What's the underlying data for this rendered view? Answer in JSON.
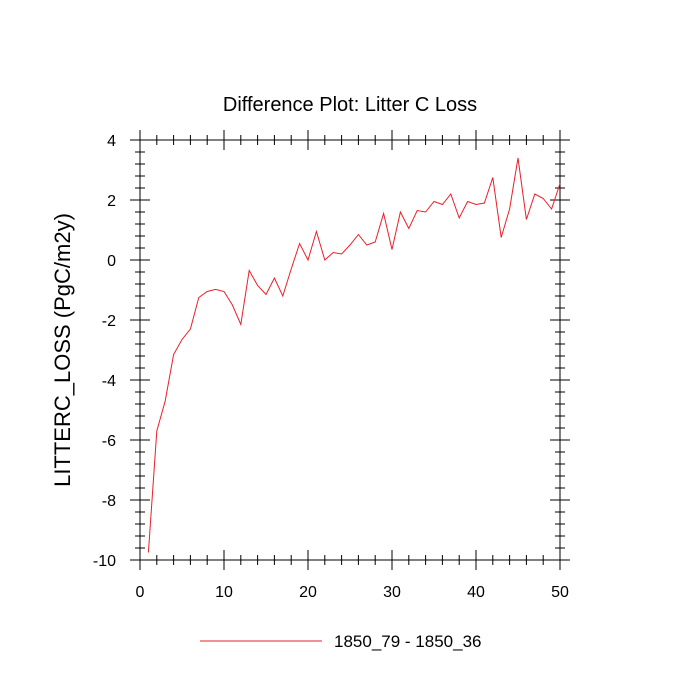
{
  "chart_data": {
    "type": "line",
    "title": "Difference Plot: Litter C Loss",
    "xlabel": "",
    "ylabel": "LITTERC_LOSS  (PgC/m2y)",
    "xlim": [
      0,
      50
    ],
    "ylim": [
      -10,
      4
    ],
    "xticks": [
      0,
      10,
      20,
      30,
      40,
      50
    ],
    "yticks": [
      -10,
      -8,
      -6,
      -4,
      -2,
      0,
      2,
      4
    ],
    "grid": false,
    "legend_position": "bottom-center",
    "colors": {
      "series": "#e8202a",
      "axis": "#000000"
    },
    "series": [
      {
        "name": "1850_79 - 1850_36",
        "x": [
          1,
          2,
          3,
          4,
          5,
          6,
          7,
          8,
          9,
          10,
          11,
          12,
          13,
          14,
          15,
          16,
          17,
          18,
          19,
          20,
          21,
          22,
          23,
          24,
          25,
          26,
          27,
          28,
          29,
          30,
          31,
          32,
          33,
          34,
          35,
          36,
          37,
          38,
          39,
          40,
          41,
          42,
          43,
          44,
          45,
          46,
          47,
          48,
          49,
          50
        ],
        "values": [
          -9.75,
          -5.7,
          -4.7,
          -3.15,
          -2.65,
          -2.3,
          -1.25,
          -1.05,
          -0.98,
          -1.05,
          -1.5,
          -2.15,
          -0.35,
          -0.85,
          -1.15,
          -0.6,
          -1.2,
          -0.3,
          0.55,
          0.0,
          0.95,
          0.0,
          0.25,
          0.2,
          0.5,
          0.85,
          0.5,
          0.6,
          1.55,
          0.35,
          1.6,
          1.05,
          1.65,
          1.6,
          1.95,
          1.85,
          2.2,
          1.4,
          1.95,
          1.85,
          1.9,
          2.75,
          0.75,
          1.7,
          3.4,
          1.35,
          2.2,
          2.05,
          1.7,
          2.55
        ]
      }
    ]
  }
}
